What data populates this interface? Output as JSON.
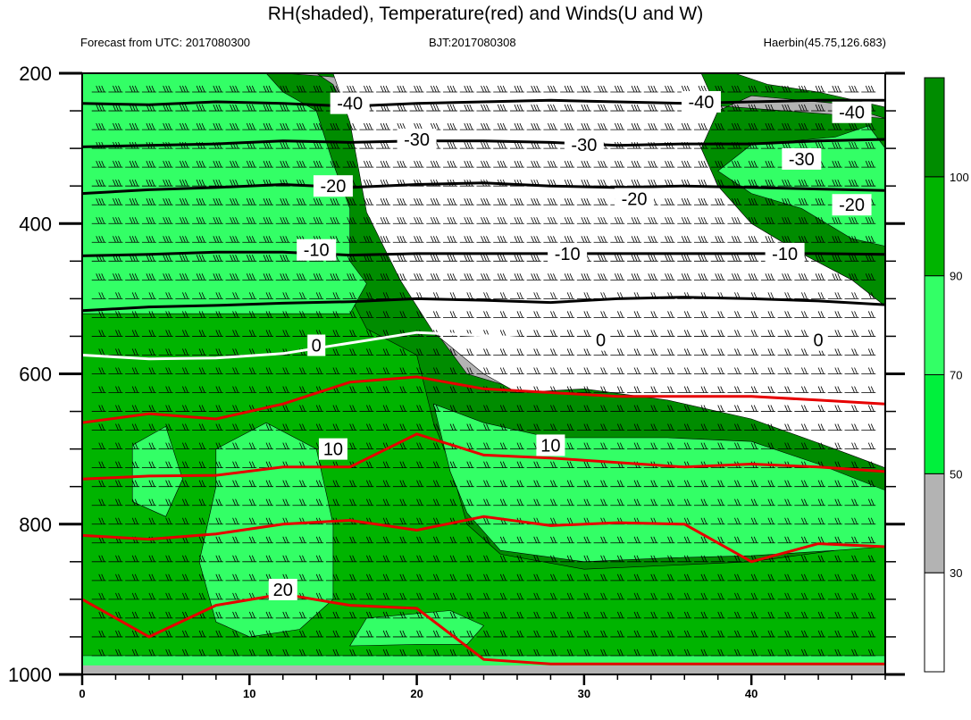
{
  "header": {
    "title": "RH(shaded), Temperature(red) and Winds(U and W)",
    "left": "Forecast from UTC: 2017080300",
    "center": "BJT:2017080308",
    "right": "Haerbin(45.75,126.683)"
  },
  "colors": {
    "rh_lt30": "#ffffff",
    "rh_30_50": "#b3b3b3",
    "rh_50_70": "#00f03c",
    "rh_70_90": "#33ff66",
    "rh_90_100": "#00b400",
    "rh_gt100": "#008c00",
    "temp_warm": "#e60000",
    "temp_cold": "#000000",
    "temp_zero": "#ffffff",
    "wind": "#000000"
  },
  "chart_data": {
    "type": "heatmap",
    "x_axis": {
      "range": [
        0,
        48
      ],
      "ticks": [
        0,
        10,
        20,
        30,
        40
      ],
      "tick_labels": [
        "0",
        "10",
        "20",
        "30",
        "40"
      ]
    },
    "y_axis": {
      "range": [
        1000,
        200
      ],
      "ticks": [
        200,
        400,
        600,
        800,
        1000
      ],
      "tick_labels": [
        "200",
        "400",
        "600",
        "800",
        "1000"
      ]
    },
    "colorbar": {
      "levels": [
        30,
        50,
        70,
        90,
        100
      ],
      "labels": [
        "30",
        "50",
        "70",
        "90",
        "100"
      ]
    },
    "rh_regions": [
      {
        "class": "rh_90_100",
        "note": "lower troposphere, hours 0-17",
        "points": [
          [
            0,
            450
          ],
          [
            5,
            445
          ],
          [
            10,
            450
          ],
          [
            15,
            452
          ],
          [
            17,
            540
          ],
          [
            20,
            575
          ],
          [
            21,
            665
          ],
          [
            22,
            720
          ],
          [
            23,
            800
          ],
          [
            25,
            840
          ],
          [
            30,
            860
          ],
          [
            35,
            855
          ],
          [
            40,
            850
          ],
          [
            45,
            835
          ],
          [
            48,
            825
          ],
          [
            48,
            975
          ],
          [
            0,
            975
          ]
        ]
      },
      {
        "class": "rh_70_90",
        "points": [
          [
            0,
            200
          ],
          [
            11,
            200
          ],
          [
            12,
            225
          ],
          [
            14,
            250
          ],
          [
            15,
            320
          ],
          [
            16,
            380
          ],
          [
            16,
            450
          ],
          [
            17,
            480
          ],
          [
            16,
            520
          ],
          [
            0,
            520
          ]
        ]
      },
      {
        "class": "rh_70_90",
        "points": [
          [
            21,
            640
          ],
          [
            24,
            665
          ],
          [
            28,
            685
          ],
          [
            35,
            685
          ],
          [
            40,
            690
          ],
          [
            44,
            720
          ],
          [
            48,
            755
          ],
          [
            48,
            830
          ],
          [
            45,
            835
          ],
          [
            40,
            842
          ],
          [
            35,
            845
          ],
          [
            30,
            850
          ],
          [
            25,
            835
          ],
          [
            23,
            785
          ],
          [
            22,
            730
          ]
        ]
      },
      {
        "class": "rh_70_90",
        "points": [
          [
            3,
            695
          ],
          [
            5,
            670
          ],
          [
            6,
            740
          ],
          [
            5,
            790
          ],
          [
            3,
            770
          ]
        ]
      },
      {
        "class": "rh_70_90",
        "points": [
          [
            8,
            700
          ],
          [
            11,
            665
          ],
          [
            14,
            700
          ],
          [
            15,
            800
          ],
          [
            15,
            900
          ],
          [
            13,
            940
          ],
          [
            10,
            950
          ],
          [
            8,
            930
          ],
          [
            7,
            850
          ],
          [
            8,
            750
          ]
        ]
      },
      {
        "class": "rh_70_90",
        "points": [
          [
            17,
            925
          ],
          [
            22,
            915
          ],
          [
            24,
            935
          ],
          [
            23,
            960
          ],
          [
            20,
            960
          ],
          [
            16,
            962
          ]
        ]
      },
      {
        "class": "rh_70_90",
        "points": [
          [
            38,
            330
          ],
          [
            40,
            295
          ],
          [
            45,
            285
          ],
          [
            47,
            270
          ],
          [
            48,
            300
          ],
          [
            48,
            430
          ],
          [
            46,
            420
          ],
          [
            43,
            380
          ],
          [
            40,
            360
          ]
        ]
      },
      {
        "class": "rh_30_50",
        "points": [
          [
            12,
            200
          ],
          [
            14,
            200
          ],
          [
            15,
            215
          ],
          [
            16,
            260
          ],
          [
            17,
            380
          ],
          [
            19,
            470
          ],
          [
            21,
            540
          ],
          [
            23,
            600
          ],
          [
            26,
            620
          ],
          [
            30,
            615
          ],
          [
            35,
            630
          ],
          [
            40,
            655
          ],
          [
            45,
            700
          ],
          [
            48,
            725
          ],
          [
            48,
            510
          ],
          [
            46,
            475
          ],
          [
            43,
            440
          ],
          [
            40,
            400
          ],
          [
            38,
            350
          ],
          [
            37,
            300
          ],
          [
            38,
            250
          ],
          [
            40,
            230
          ],
          [
            45,
            240
          ],
          [
            48,
            260
          ]
        ]
      },
      {
        "class": "rh_lt30",
        "points": [
          [
            15,
            200
          ],
          [
            37,
            200
          ],
          [
            38,
            250
          ],
          [
            37,
            300
          ],
          [
            38,
            350
          ],
          [
            40,
            400
          ],
          [
            43,
            440
          ],
          [
            46,
            475
          ],
          [
            48,
            510
          ],
          [
            48,
            725
          ],
          [
            45,
            700
          ],
          [
            40,
            660
          ],
          [
            35,
            635
          ],
          [
            30,
            620
          ],
          [
            26,
            625
          ],
          [
            24,
            600
          ],
          [
            21,
            545
          ],
          [
            19,
            475
          ],
          [
            17,
            385
          ],
          [
            16,
            265
          ]
        ]
      },
      {
        "class": "rh_lt30",
        "points": [
          [
            39,
            200
          ],
          [
            48,
            200
          ],
          [
            48,
            245
          ],
          [
            44,
            225
          ],
          [
            41,
            215
          ]
        ]
      }
    ],
    "temperature_contours": [
      {
        "level": "-40",
        "color_key": "temp_cold",
        "x": [
          0,
          4,
          8,
          12,
          16,
          20,
          24,
          28,
          32,
          36,
          40,
          44,
          48
        ],
        "y": [
          240,
          242,
          238,
          240,
          244,
          240,
          238,
          236,
          238,
          240,
          238,
          236,
          236
        ]
      },
      {
        "level": "-30",
        "color_key": "temp_cold",
        "x": [
          0,
          4,
          8,
          12,
          16,
          20,
          24,
          28,
          32,
          36,
          40,
          44,
          48
        ],
        "y": [
          298,
          296,
          294,
          290,
          292,
          290,
          290,
          292,
          296,
          294,
          294,
          290,
          288
        ]
      },
      {
        "level": "-20",
        "color_key": "temp_cold",
        "x": [
          0,
          4,
          8,
          12,
          16,
          20,
          24,
          28,
          32,
          36,
          40,
          44,
          48
        ],
        "y": [
          360,
          355,
          352,
          348,
          352,
          348,
          346,
          350,
          352,
          350,
          352,
          354,
          356
        ]
      },
      {
        "level": "-10",
        "color_key": "temp_cold",
        "x": [
          0,
          4,
          8,
          12,
          16,
          20,
          24,
          28,
          32,
          36,
          40,
          44,
          48
        ],
        "y": [
          443,
          441,
          438,
          438,
          442,
          440,
          440,
          440,
          440,
          440,
          440,
          440,
          441
        ]
      },
      {
        "level": "-10b",
        "color_key": "temp_cold",
        "x": [
          0,
          4,
          8,
          12,
          16,
          20,
          24,
          28,
          32,
          36,
          40,
          44,
          48
        ],
        "y": [
          516,
          511,
          509,
          506,
          504,
          500,
          502,
          505,
          500,
          498,
          500,
          503,
          508
        ]
      },
      {
        "level": "0",
        "color_key": "temp_zero",
        "x": [
          0,
          4,
          8,
          12,
          16,
          20,
          24,
          28,
          32,
          36,
          40,
          44,
          48
        ],
        "y": [
          575,
          580,
          579,
          573,
          559,
          545,
          549,
          555,
          554,
          553,
          552,
          554,
          565
        ]
      },
      {
        "level": "0b",
        "color_key": "temp_warm",
        "x": [
          0,
          4,
          8,
          12,
          16,
          20,
          24,
          28,
          32,
          36,
          40,
          44,
          48
        ],
        "y": [
          665,
          653,
          660,
          640,
          611,
          604,
          620,
          625,
          630,
          630,
          630,
          635,
          640
        ]
      },
      {
        "level": "10",
        "color_key": "temp_warm",
        "x": [
          0,
          4,
          8,
          12,
          16,
          20,
          24,
          28,
          32,
          36,
          40,
          44,
          48
        ],
        "y": [
          740,
          736,
          735,
          724,
          724,
          680,
          708,
          712,
          718,
          724,
          720,
          724,
          730
        ]
      },
      {
        "level": "10b",
        "color_key": "temp_warm",
        "x": [
          0,
          4,
          8,
          12,
          16,
          20,
          24,
          28,
          32,
          36,
          40,
          44,
          48
        ],
        "y": [
          815,
          820,
          813,
          800,
          795,
          808,
          790,
          802,
          798,
          800,
          850,
          826,
          830
        ]
      },
      {
        "level": "20",
        "color_key": "temp_warm",
        "x": [
          0,
          4,
          8,
          12,
          16,
          20,
          24,
          28,
          32,
          36,
          40,
          44,
          48
        ],
        "y": [
          900,
          950,
          908,
          893,
          908,
          912,
          980,
          986,
          986,
          986,
          986,
          986,
          986
        ]
      }
    ],
    "contour_labels": [
      {
        "text": "-40",
        "x": 16,
        "y": 240
      },
      {
        "text": "-40",
        "x": 37,
        "y": 238
      },
      {
        "text": "-40",
        "x": 46,
        "y": 252
      },
      {
        "text": "-30",
        "x": 20,
        "y": 288
      },
      {
        "text": "-30",
        "x": 30,
        "y": 295
      },
      {
        "text": "-30",
        "x": 43,
        "y": 314
      },
      {
        "text": "-20",
        "x": 15,
        "y": 350
      },
      {
        "text": "-20",
        "x": 33,
        "y": 367
      },
      {
        "text": "-20",
        "x": 46,
        "y": 375
      },
      {
        "text": "-10",
        "x": 14,
        "y": 435
      },
      {
        "text": "-10",
        "x": 29,
        "y": 440
      },
      {
        "text": "-10",
        "x": 42,
        "y": 440
      },
      {
        "text": "0",
        "x": 14,
        "y": 562
      },
      {
        "text": "0",
        "x": 31,
        "y": 555
      },
      {
        "text": "0",
        "x": 44,
        "y": 555
      },
      {
        "text": "10",
        "x": 15,
        "y": 700
      },
      {
        "text": "10",
        "x": 28,
        "y": 695
      },
      {
        "text": "20",
        "x": 12,
        "y": 887
      }
    ]
  }
}
